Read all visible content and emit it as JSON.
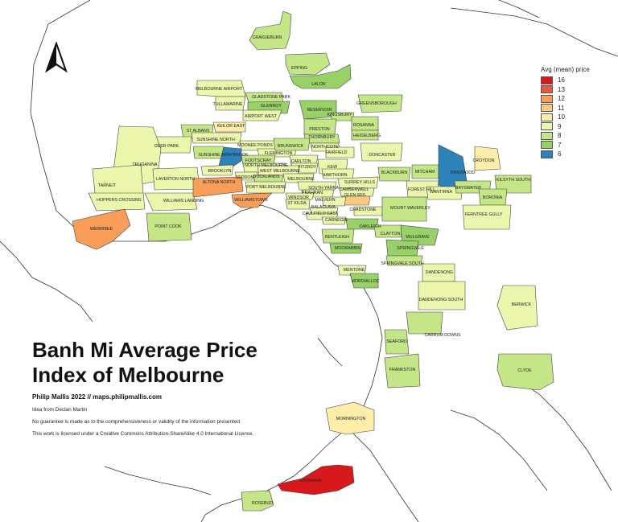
{
  "title": "Banh Mi Average Price Index of Melbourne",
  "byline": "Philip Mallis 2022 // maps.philipmallis.com",
  "notes": [
    "Idea from Declan Martin",
    "No guarantee is made as to the comprehensiveness or validity of the information presented.",
    "This work is licensed under a Creative Commons Attribution-ShareAlike 4.0 International License."
  ],
  "legend": {
    "title": "Avg (mean) price",
    "items": [
      {
        "value": "16",
        "color": "#d7191c"
      },
      {
        "value": "13",
        "color": "#e85b3a"
      },
      {
        "value": "12",
        "color": "#f99e59"
      },
      {
        "value": "11",
        "color": "#fdc980"
      },
      {
        "value": "10",
        "color": "#ffedaa"
      },
      {
        "value": "9",
        "color": "#ecf7ad"
      },
      {
        "value": "8",
        "color": "#c4e687"
      },
      {
        "value": "7",
        "color": "#97d168"
      },
      {
        "value": "6",
        "color": "#2b83ba"
      }
    ]
  },
  "suburbs": [
    {
      "name": "CRAIGIEBURN",
      "price": 8
    },
    {
      "name": "EPPING",
      "price": 8
    },
    {
      "name": "LALOR",
      "price": 7
    },
    {
      "name": "MELBOURNE AIRPORT",
      "price": 9
    },
    {
      "name": "GLADSTONE PARK",
      "price": 8
    },
    {
      "name": "TULLAMARINE",
      "price": 9
    },
    {
      "name": "GLENROY",
      "price": 7
    },
    {
      "name": "AIRPORT WEST",
      "price": 9
    },
    {
      "name": "GREENSBOROUGH",
      "price": 8
    },
    {
      "name": "RESERVOIR",
      "price": 7
    },
    {
      "name": "KINGSBURY",
      "price": 8
    },
    {
      "name": "ROSANNA",
      "price": 8
    },
    {
      "name": "HEIDELBERG",
      "price": 8
    },
    {
      "name": "PRESTON",
      "price": 8
    },
    {
      "name": "THORNBURY",
      "price": 8
    },
    {
      "name": "NORTHCOTE",
      "price": 9
    },
    {
      "name": "FAIRFIELD",
      "price": 9
    },
    {
      "name": "ST ALBANS",
      "price": 8
    },
    {
      "name": "KEILOR EAST",
      "price": 10
    },
    {
      "name": "DEER PARK",
      "price": 9
    },
    {
      "name": "SUNSHINE NORTH",
      "price": 9
    },
    {
      "name": "MOONEE PONDS",
      "price": 9
    },
    {
      "name": "FLEMINGTON",
      "price": 9
    },
    {
      "name": "BRUNSWICK",
      "price": 8
    },
    {
      "name": "SUNSHINE",
      "price": 8
    },
    {
      "name": "BRAYBROOK",
      "price": 6
    },
    {
      "name": "FOOTSCRAY",
      "price": 8
    },
    {
      "name": "NORTH MELBOURNE",
      "price": 9
    },
    {
      "name": "CARLTON",
      "price": 9
    },
    {
      "name": "FITZROY",
      "price": 9
    },
    {
      "name": "KEW",
      "price": 9
    },
    {
      "name": "DONCASTER",
      "price": 9
    },
    {
      "name": "TRUGANINA",
      "price": 9
    },
    {
      "name": "LAVERTON NORTH",
      "price": 9
    },
    {
      "name": "BROOKLYN",
      "price": 9
    },
    {
      "name": "SEDDON",
      "price": 9
    },
    {
      "name": "WEST MELBOURNE",
      "price": 9
    },
    {
      "name": "DOCKLANDS",
      "price": 8
    },
    {
      "name": "MELBOURNE",
      "price": 9
    },
    {
      "name": "HAWTHORN",
      "price": 9
    },
    {
      "name": "SURREY HILLS",
      "price": 9
    },
    {
      "name": "BLACKBURN",
      "price": 8
    },
    {
      "name": "MITCHAM",
      "price": 8
    },
    {
      "name": "RINGWOOD",
      "price": 6
    },
    {
      "name": "CROYDON",
      "price": 10
    },
    {
      "name": "KILSYTH SOUTH",
      "price": 8
    },
    {
      "name": "TARNEIT",
      "price": 9
    },
    {
      "name": "HOPPERS CROSSING",
      "price": 9
    },
    {
      "name": "WILLIAMS LANDING",
      "price": 9
    },
    {
      "name": "ALTONA NORTH",
      "price": 12
    },
    {
      "name": "PORT MELBOURNE",
      "price": 9
    },
    {
      "name": "WILLIAMSTOWN",
      "price": 12
    },
    {
      "name": "SOUTH YARRA",
      "price": 9
    },
    {
      "name": "PRAHRAN",
      "price": 9
    },
    {
      "name": "WINDSOR",
      "price": 9
    },
    {
      "name": "ST KILDA",
      "price": 9
    },
    {
      "name": "CAMBERWELL",
      "price": 9
    },
    {
      "name": "GLEN IRIS",
      "price": 11
    },
    {
      "name": "MALVERN",
      "price": 9
    },
    {
      "name": "FOREST HILL",
      "price": 9
    },
    {
      "name": "WANTIRNA",
      "price": 9
    },
    {
      "name": "BAYSWATER",
      "price": 8
    },
    {
      "name": "BORONIA",
      "price": 8
    },
    {
      "name": "FERNTREE GULLY",
      "price": 9
    },
    {
      "name": "WERRIBEE",
      "price": 12
    },
    {
      "name": "POINT COOK",
      "price": 8
    },
    {
      "name": "BALACLAVA",
      "price": 9
    },
    {
      "name": "CAULFIELD EAST",
      "price": 9
    },
    {
      "name": "CARNEGIE",
      "price": 9
    },
    {
      "name": "CHADSTONE",
      "price": 9
    },
    {
      "name": "MOUNT WAVERLEY",
      "price": 8
    },
    {
      "name": "OAKLEIGH",
      "price": 7
    },
    {
      "name": "BENTLEIGH",
      "price": 8
    },
    {
      "name": "CLAYTON",
      "price": 8
    },
    {
      "name": "MULGRAVE",
      "price": 7
    },
    {
      "name": "MOORABBIN",
      "price": 7
    },
    {
      "name": "SPRINGVALE",
      "price": 7
    },
    {
      "name": "SPRINGVALE SOUTH",
      "price": 8
    },
    {
      "name": "MENTONE",
      "price": 9
    },
    {
      "name": "MORDIALLOC",
      "price": 7
    },
    {
      "name": "DANDENONG",
      "price": 9
    },
    {
      "name": "DANDENONG SOUTH",
      "price": 9
    },
    {
      "name": "BERWICK",
      "price": 9
    },
    {
      "name": "SEAFORD",
      "price": 8
    },
    {
      "name": "CARRUM DOWNS",
      "price": 8
    },
    {
      "name": "FRANKSTON",
      "price": 8
    },
    {
      "name": "CLYDE",
      "price": 8
    },
    {
      "name": "MORNINGTON",
      "price": 10
    },
    {
      "name": "CROMANA",
      "price": 16
    },
    {
      "name": "ROSEBUD",
      "price": 8
    }
  ]
}
